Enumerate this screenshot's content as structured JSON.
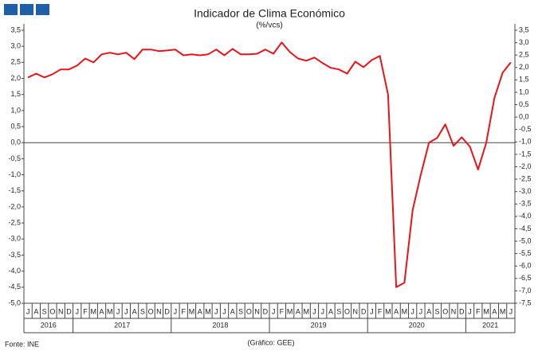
{
  "chart_data": {
    "type": "line",
    "title": "Indicador de Clima Económico",
    "subtitle": "(%/vcs)",
    "source": "Fonte: INE",
    "credit": "(Gráfico: GEE)",
    "categories": [
      "J",
      "A",
      "S",
      "O",
      "N",
      "D",
      "J",
      "F",
      "M",
      "A",
      "M",
      "J",
      "J",
      "A",
      "S",
      "O",
      "N",
      "D",
      "J",
      "F",
      "M",
      "A",
      "M",
      "J",
      "J",
      "A",
      "S",
      "O",
      "N",
      "D",
      "J",
      "F",
      "M",
      "A",
      "M",
      "J",
      "J",
      "A",
      "S",
      "O",
      "N",
      "D",
      "J",
      "F",
      "M",
      "A",
      "M",
      "J",
      "J",
      "A",
      "S",
      "O",
      "N",
      "D",
      "J",
      "F",
      "M",
      "A",
      "M",
      "J"
    ],
    "years": [
      "2016",
      "2017",
      "2018",
      "2019",
      "2020",
      "2021"
    ],
    "series": [
      {
        "name": "Indicador de Clima Económico",
        "color": "#e8141c",
        "values": [
          2.03,
          2.15,
          2.03,
          2.13,
          2.28,
          2.28,
          2.4,
          2.62,
          2.5,
          2.75,
          2.8,
          2.75,
          2.8,
          2.6,
          2.9,
          2.9,
          2.85,
          2.87,
          2.9,
          2.72,
          2.75,
          2.72,
          2.75,
          2.9,
          2.72,
          2.92,
          2.75,
          2.75,
          2.77,
          2.9,
          2.77,
          3.12,
          2.82,
          2.62,
          2.55,
          2.65,
          2.48,
          2.33,
          2.28,
          2.15,
          2.52,
          2.35,
          2.57,
          2.7,
          1.49,
          -4.5,
          -4.36,
          -2.1,
          -1.0,
          0.0,
          0.15,
          0.57,
          -0.1,
          0.17,
          -0.12,
          -0.84,
          0.0,
          1.39,
          2.18,
          2.5
        ]
      }
    ],
    "ylim": [
      -5,
      3.5
    ],
    "yticks": [
      {
        "value": 3.5,
        "label": "3,5"
      },
      {
        "value": 3,
        "label": "3,0"
      },
      {
        "value": 2.5,
        "label": "2,5"
      },
      {
        "value": 2,
        "label": "2,0"
      },
      {
        "value": 1.5,
        "label": "1,5"
      },
      {
        "value": 1,
        "label": "1,0"
      },
      {
        "value": 0.5,
        "label": "0,5"
      },
      {
        "value": 0,
        "label": "0,0"
      },
      {
        "value": -0.5,
        "label": "-0,5"
      },
      {
        "value": -1,
        "label": "-1,0"
      },
      {
        "value": -1.5,
        "label": "-1,5"
      },
      {
        "value": -2,
        "label": "-2,0"
      },
      {
        "value": -2.5,
        "label": "-2,5"
      },
      {
        "value": -3,
        "label": "-3,0"
      },
      {
        "value": -3.5,
        "label": "-3,5"
      },
      {
        "value": -4,
        "label": "-4,0"
      },
      {
        "value": -4.5,
        "label": "-4,5"
      },
      {
        "value": -5,
        "label": "-5,0"
      }
    ],
    "y2lim": [
      -7.5,
      3.5
    ],
    "y2ticks": [
      {
        "value": 3.5,
        "label": "3,5"
      },
      {
        "value": 3,
        "label": "3,0"
      },
      {
        "value": 2.5,
        "label": "2,5"
      },
      {
        "value": 2,
        "label": "2,0"
      },
      {
        "value": 1.5,
        "label": "1,5"
      },
      {
        "value": 1,
        "label": "1,0"
      },
      {
        "value": 0.5,
        "label": "0,5"
      },
      {
        "value": 0,
        "label": "0,0"
      },
      {
        "value": -0.5,
        "label": "-0,5"
      },
      {
        "value": -1,
        "label": "-1,0"
      },
      {
        "value": -1.5,
        "label": "-1,5"
      },
      {
        "value": -2,
        "label": "-2,0"
      },
      {
        "value": -2.5,
        "label": "-2,5"
      },
      {
        "value": -3,
        "label": "-3,0"
      },
      {
        "value": -3.5,
        "label": "-3,5"
      },
      {
        "value": -4,
        "label": "-4,0"
      },
      {
        "value": -4.5,
        "label": "-4,5"
      },
      {
        "value": -5,
        "label": "-5,0"
      },
      {
        "value": -5.5,
        "label": "-5,5"
      },
      {
        "value": -6,
        "label": "-6,0"
      },
      {
        "value": -6.5,
        "label": "-6,5"
      },
      {
        "value": -7,
        "label": "-7,0"
      },
      {
        "value": -7.5,
        "label": "-7,5"
      }
    ],
    "grid": false
  }
}
